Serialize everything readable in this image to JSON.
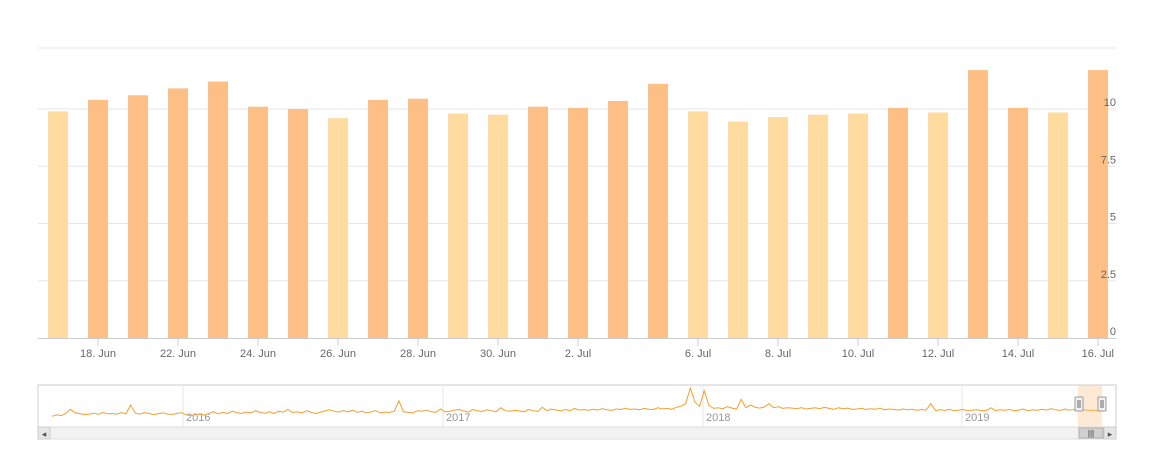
{
  "chart_data": {
    "type": "bar",
    "y_axis": {
      "range": [
        0,
        12
      ],
      "tick_labels": [
        "0",
        "2.5",
        "5",
        "7.5",
        "10"
      ],
      "position": "right",
      "grid": true
    },
    "x_axis": {
      "tick_labels": [
        "18. Jun",
        "22. Jun",
        "24. Jun",
        "26. Jun",
        "28. Jun",
        "30. Jun",
        "2. Jul",
        "6. Jul",
        "8. Jul",
        "10. Jul",
        "12. Jul",
        "14. Jul",
        "16. Jul"
      ]
    },
    "values": [
      9.9,
      10.4,
      10.6,
      10.9,
      11.2,
      10.1,
      10.0,
      9.6,
      10.4,
      10.45,
      9.8,
      9.75,
      10.1,
      10.05,
      10.35,
      11.1,
      9.9,
      9.45,
      9.65,
      9.75,
      9.8,
      10.05,
      9.85,
      11.7,
      10.05,
      9.85,
      11.7
    ],
    "bar_colors": [
      "#FFDBA0",
      "#FCC087",
      "#FCC087",
      "#FCC087",
      "#FCC087",
      "#FCC087",
      "#FCC087",
      "#FFDBA0",
      "#FCC087",
      "#FCC087",
      "#FFDBA0",
      "#FFDBA0",
      "#FCC087",
      "#FCC087",
      "#FCC087",
      "#FCC087",
      "#FFDBA0",
      "#FFDBA0",
      "#FFDBA0",
      "#FFDBA0",
      "#FFDBA0",
      "#FCC087",
      "#FFDBA0",
      "#FCC087",
      "#FCC087",
      "#FFDBA0",
      "#FCC087"
    ],
    "colors": {
      "rising": "#FCC087",
      "falling": "#FFDBA0",
      "navigator_line": "#F0A030",
      "grid": "#e6e6e6"
    },
    "navigator": {
      "year_labels": [
        "2016",
        "2017",
        "2018",
        "2019"
      ],
      "series": [
        2.0,
        2.5,
        2.3,
        3.0,
        4.5,
        3.2,
        3.0,
        2.6,
        2.8,
        3.1,
        2.7,
        3.4,
        2.9,
        3.0,
        2.8,
        3.3,
        2.9,
        6.0,
        3.1,
        2.8,
        3.3,
        3.0,
        2.6,
        2.9,
        3.2,
        2.8,
        2.7,
        3.0,
        3.3,
        2.5,
        2.3,
        2.6,
        2.9,
        2.4,
        3.1,
        3.6,
        2.9,
        3.4,
        3.0,
        3.8,
        3.3,
        3.0,
        3.5,
        3.2,
        4.0,
        3.4,
        3.1,
        3.6,
        3.0,
        3.8,
        3.5,
        4.5,
        3.3,
        3.6,
        3.2,
        4.0,
        3.4,
        3.0,
        3.4,
        3.9,
        4.3,
        3.8,
        3.5,
        4.0,
        3.6,
        4.2,
        3.4,
        3.8,
        3.2,
        3.6,
        4.0,
        3.2,
        3.5,
        3.4,
        3.8,
        7.5,
        3.6,
        3.4,
        3.2,
        4.0,
        3.8,
        4.2,
        3.6,
        3.4,
        4.6,
        3.6,
        3.8,
        4.2,
        4.4,
        3.9,
        3.5,
        4.4,
        3.9,
        3.7,
        4.3,
        4.0,
        3.6,
        5.0,
        4.0,
        3.8,
        4.1,
        3.9,
        3.6,
        4.4,
        4.0,
        3.7,
        5.2,
        4.0,
        4.6,
        4.2,
        4.0,
        4.4,
        4.0,
        4.8,
        4.2,
        4.4,
        4.1,
        4.5,
        4.2,
        4.7,
        4.3,
        4.1,
        4.6,
        4.4,
        4.9,
        4.4,
        4.6,
        4.3,
        4.8,
        4.5,
        4.4,
        5.0,
        4.6,
        4.8,
        4.5,
        5.2,
        5.6,
        6.5,
        12.0,
        7.0,
        5.5,
        11.0,
        6.0,
        4.8,
        5.0,
        4.7,
        5.4,
        4.9,
        4.6,
        8.0,
        5.0,
        6.0,
        5.2,
        4.9,
        5.3,
        6.5,
        5.0,
        5.4,
        4.8,
        5.0,
        4.9,
        4.7,
        5.1,
        4.6,
        4.8,
        5.0,
        4.7,
        5.2,
        4.8,
        4.5,
        5.0,
        4.7,
        4.9,
        4.4,
        4.6,
        4.8,
        4.4,
        4.7,
        4.5,
        4.9,
        4.3,
        4.6,
        4.4,
        4.2,
        4.6,
        4.3,
        4.5,
        4.1,
        4.4,
        4.2,
        6.5,
        4.0,
        4.3,
        4.1,
        4.5,
        4.0,
        4.2,
        4.4,
        4.0,
        4.2,
        4.3,
        4.0,
        4.1,
        5.0,
        4.0,
        4.3,
        4.1,
        4.4,
        4.0,
        4.2,
        4.6,
        4.0,
        4.3,
        4.1,
        4.5,
        4.2,
        4.7,
        4.3,
        4.1,
        4.6,
        4.2,
        4.4,
        4.0,
        4.3,
        4.1,
        4.2,
        4.0,
        4.5
      ]
    }
  },
  "scrollbar": {
    "left_arrow": "◂",
    "right_arrow": "▸",
    "grip": "|||"
  },
  "icons": {
    "left": "arrow-left-icon",
    "right": "arrow-right-icon",
    "grip": "grip-icon"
  }
}
